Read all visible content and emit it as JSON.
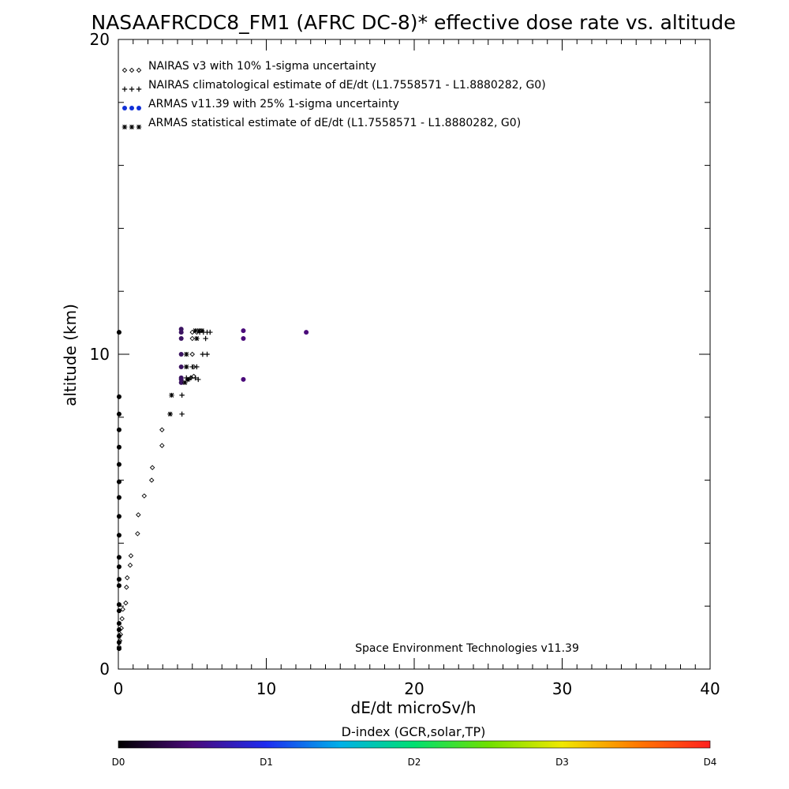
{
  "chart_data": {
    "type": "scatter",
    "title": "NASAAFRCDC8_FM1 (AFRC DC-8)* effective dose rate vs. altitude",
    "xlabel": "dE/dt microSv/h",
    "ylabel": "altitude (km)",
    "xlim": [
      0,
      40
    ],
    "ylim": [
      0,
      20
    ],
    "x_ticks": [
      "0",
      "10",
      "20",
      "30",
      "40"
    ],
    "y_ticks": [
      "0",
      "10",
      "20"
    ],
    "grid": false,
    "legend_position": "top-left",
    "credit": "Space Environment Technologies v11.39",
    "legend": [
      {
        "label": "NAIRAS v3 with 10% 1-sigma uncertainty",
        "marker": "diamond",
        "color": "#000000"
      },
      {
        "label": "NAIRAS climatological estimate of dE/dt (L1.7558571 - L1.8880282, G0)",
        "marker": "plus",
        "color": "#000000"
      },
      {
        "label": "ARMAS v11.39 with 25% 1-sigma uncertainty",
        "marker": "dot",
        "color": "#1030d8"
      },
      {
        "label": "ARMAS statistical estimate of dE/dt (L1.7558571 - L1.8880282, G0)",
        "marker": "asterisk",
        "color": "#000000"
      }
    ],
    "series": [
      {
        "name": "NAIRAS v3 with 10% 1-sigma uncertainty",
        "marker": "diamond",
        "points": [
          [
            0.05,
            0.7
          ],
          [
            0.1,
            0.9
          ],
          [
            0.15,
            1.1
          ],
          [
            0.2,
            1.3
          ],
          [
            0.25,
            1.6
          ],
          [
            0.3,
            1.9
          ],
          [
            0.5,
            2.1
          ],
          [
            0.55,
            2.6
          ],
          [
            0.6,
            2.9
          ],
          [
            0.8,
            3.3
          ],
          [
            0.85,
            3.6
          ],
          [
            1.3,
            4.3
          ],
          [
            1.35,
            4.9
          ],
          [
            1.75,
            5.5
          ],
          [
            2.25,
            6.0
          ],
          [
            2.3,
            6.4
          ],
          [
            2.95,
            7.1
          ],
          [
            2.95,
            7.6
          ],
          [
            4.7,
            9.2
          ],
          [
            4.9,
            9.25
          ],
          [
            5.1,
            9.3
          ],
          [
            5.1,
            9.6
          ],
          [
            5.0,
            10.0
          ],
          [
            5.0,
            10.5
          ],
          [
            5.0,
            10.7
          ],
          [
            5.3,
            10.7
          ]
        ]
      },
      {
        "name": "NAIRAS climatological estimate of dE/dt (L1.7558571 - L1.8880282, G0)",
        "marker": "plus",
        "points": [
          [
            4.3,
            8.1
          ],
          [
            4.3,
            8.7
          ],
          [
            4.6,
            9.25
          ],
          [
            4.9,
            9.25
          ],
          [
            5.2,
            9.25
          ],
          [
            5.4,
            9.2
          ],
          [
            5.0,
            9.6
          ],
          [
            5.3,
            9.6
          ],
          [
            5.7,
            10.0
          ],
          [
            6.0,
            10.0
          ],
          [
            5.9,
            10.5
          ],
          [
            5.5,
            10.7
          ],
          [
            5.75,
            10.7
          ],
          [
            6.0,
            10.7
          ],
          [
            6.2,
            10.7
          ]
        ]
      },
      {
        "name": "ARMAS v11.39 with 25% 1-sigma uncertainty",
        "marker": "dot",
        "points": [
          [
            0.05,
            0.65
          ],
          [
            0.05,
            0.85
          ],
          [
            0.05,
            1.05
          ],
          [
            0.05,
            1.25
          ],
          [
            0.05,
            1.45
          ],
          [
            0.05,
            1.85
          ],
          [
            0.05,
            2.05
          ],
          [
            0.05,
            2.65
          ],
          [
            0.05,
            2.85
          ],
          [
            0.05,
            3.25
          ],
          [
            0.05,
            3.55
          ],
          [
            0.05,
            4.25
          ],
          [
            0.05,
            4.85
          ],
          [
            0.05,
            5.45
          ],
          [
            0.05,
            5.95
          ],
          [
            0.05,
            6.5
          ],
          [
            0.05,
            7.05
          ],
          [
            0.05,
            7.6
          ],
          [
            0.05,
            8.1
          ],
          [
            0.05,
            8.65
          ],
          [
            0.05,
            10.7
          ],
          [
            4.25,
            9.1
          ],
          [
            4.25,
            9.2
          ],
          [
            4.25,
            9.25
          ],
          [
            4.25,
            9.6
          ],
          [
            4.25,
            10.0
          ],
          [
            4.25,
            10.5
          ],
          [
            4.25,
            10.7
          ],
          [
            4.25,
            10.8
          ],
          [
            8.45,
            9.2
          ],
          [
            8.45,
            10.5
          ],
          [
            8.45,
            10.75
          ],
          [
            12.7,
            10.7
          ]
        ]
      },
      {
        "name": "ARMAS statistical estimate of dE/dt (L1.7558571 - L1.8880282, G0)",
        "marker": "asterisk",
        "points": [
          [
            3.5,
            8.1
          ],
          [
            3.6,
            8.7
          ],
          [
            4.5,
            9.1
          ],
          [
            4.7,
            9.2
          ],
          [
            4.6,
            9.6
          ],
          [
            4.6,
            10.0
          ],
          [
            5.3,
            10.5
          ],
          [
            5.2,
            10.75
          ],
          [
            5.45,
            10.75
          ],
          [
            5.65,
            10.75
          ]
        ]
      }
    ],
    "colorbar": {
      "title": "D-index (GCR,solar,TP)",
      "labels": [
        "D0",
        "D1",
        "D2",
        "D3",
        "D4"
      ],
      "label_values": [
        0,
        1,
        2,
        3,
        4
      ],
      "colors": [
        "#000000",
        "#4a0a7a",
        "#1e2cf0",
        "#00b0e8",
        "#00e070",
        "#6ee000",
        "#f0e800",
        "#ff7a00",
        "#ff2020"
      ]
    }
  }
}
